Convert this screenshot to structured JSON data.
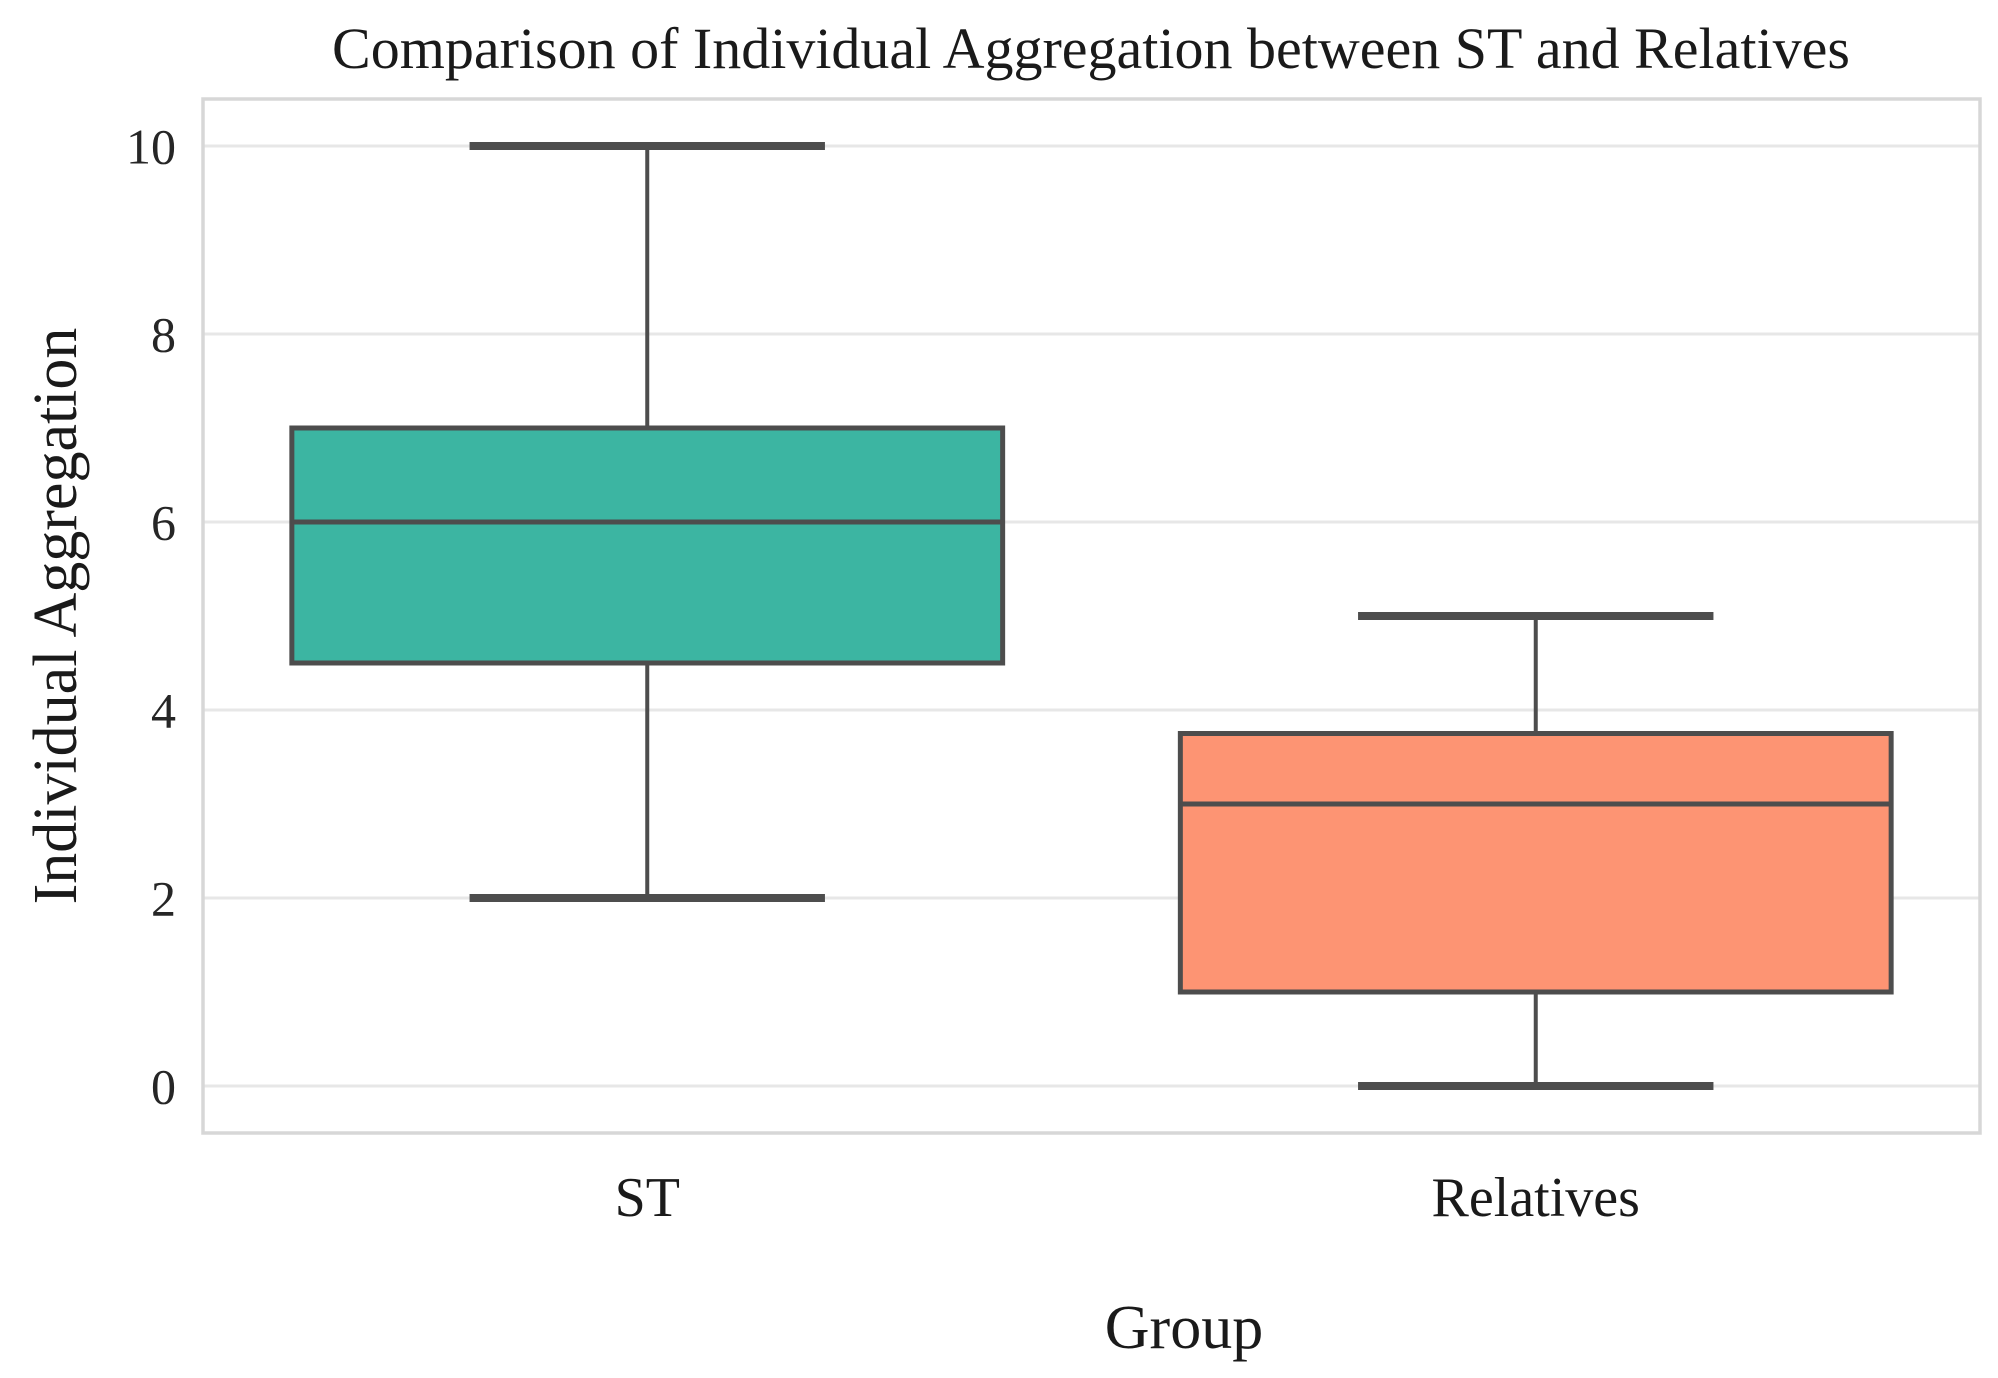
{
  "chart_data": {
    "type": "box",
    "title": "Comparison of Individual Aggregation between ST and Relatives",
    "xlabel": "Group",
    "ylabel": "Individual Aggregation",
    "ylim": [
      -0.5,
      10.5
    ],
    "yticks": [
      0,
      2,
      4,
      6,
      8,
      10
    ],
    "grid": "horizontal",
    "legend": "none",
    "categories": [
      "ST",
      "Relatives"
    ],
    "series": [
      {
        "name": "ST",
        "whisker_low": 2,
        "q1": 4.5,
        "median": 6,
        "q3": 7,
        "whisker_high": 10,
        "fill_color": "#3cb5a2"
      },
      {
        "name": "Relatives",
        "whisker_low": 0,
        "q1": 1,
        "median": 3,
        "q3": 3.75,
        "whisker_high": 5,
        "fill_color": "#fd9473"
      }
    ],
    "colors": {
      "box_edge": "#4d4d4d",
      "median_line": "#4d4d4d",
      "whisker": "#4d4d4d",
      "grid_line": "#e7e7e7",
      "axis_border": "#d7d7d7",
      "background": "#ffffff"
    }
  }
}
